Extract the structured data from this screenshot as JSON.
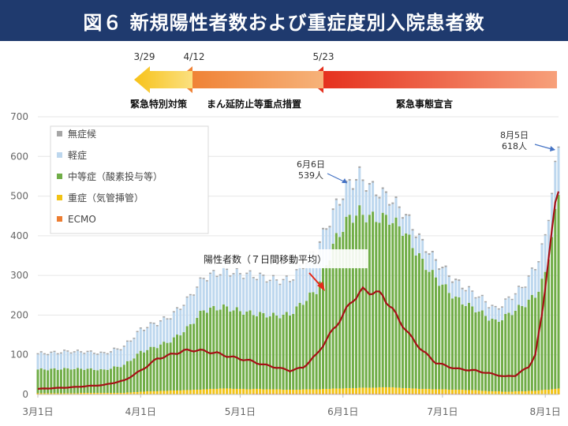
{
  "title": "図６ 新規陽性者数および重症度別入院患者数",
  "phases": [
    {
      "date": "3/29",
      "label": "緊急特別対策",
      "color": "#f7c21a"
    },
    {
      "date": "4/12",
      "label": "まん延防止等重点措置",
      "color": "#ef7d2e"
    },
    {
      "date": "5/23",
      "label": "緊急事態宣言",
      "color": "#e42a19"
    }
  ],
  "annotations": [
    {
      "date": "6月6日",
      "value": "539人"
    },
    {
      "date": "8月5日",
      "value": "618人"
    }
  ],
  "line_callout": "陽性者数（７日間移動平均）",
  "colors": {
    "none": "#a6a6a6",
    "mild": "#bdd7ee",
    "moderate": "#70ad47",
    "severe": "#f2c315",
    "ecmo": "#ed7d31",
    "line": "#a50f15"
  },
  "chart_data": {
    "type": "bar",
    "stacked": true,
    "ylim": [
      0,
      700
    ],
    "yticks": [
      0,
      100,
      200,
      300,
      400,
      500,
      600,
      700
    ],
    "xlim": [
      0,
      157
    ],
    "xticks": [
      {
        "label": "3月1日",
        "day": 0
      },
      {
        "label": "4月1日",
        "day": 31
      },
      {
        "label": "5月1日",
        "day": 61
      },
      {
        "label": "6月1日",
        "day": 92
      },
      {
        "label": "7月1日",
        "day": 122
      },
      {
        "label": "8月1日",
        "day": 153
      }
    ],
    "legend": [
      "無症候",
      "軽症",
      "中等症（酸素投与等）",
      "重症（気管挿管）",
      "ECMO"
    ],
    "legend_position": "top-left",
    "series_keyframes": {
      "moderate": [
        [
          0,
          60
        ],
        [
          10,
          62
        ],
        [
          20,
          58
        ],
        [
          26,
          70
        ],
        [
          31,
          100
        ],
        [
          40,
          125
        ],
        [
          45,
          155
        ],
        [
          50,
          200
        ],
        [
          56,
          205
        ],
        [
          65,
          190
        ],
        [
          72,
          185
        ],
        [
          76,
          190
        ],
        [
          84,
          250
        ],
        [
          90,
          380
        ],
        [
          94,
          430
        ],
        [
          97,
          442
        ],
        [
          100,
          430
        ],
        [
          106,
          425
        ],
        [
          110,
          400
        ],
        [
          116,
          320
        ],
        [
          120,
          280
        ],
        [
          126,
          230
        ],
        [
          134,
          195
        ],
        [
          138,
          175
        ],
        [
          141,
          190
        ],
        [
          146,
          215
        ],
        [
          150,
          240
        ],
        [
          153,
          290
        ],
        [
          155,
          390
        ],
        [
          157,
          485
        ]
      ],
      "mild": [
        [
          0,
          38
        ],
        [
          10,
          42
        ],
        [
          20,
          40
        ],
        [
          26,
          45
        ],
        [
          31,
          55
        ],
        [
          40,
          60
        ],
        [
          45,
          70
        ],
        [
          50,
          80
        ],
        [
          56,
          90
        ],
        [
          65,
          95
        ],
        [
          72,
          88
        ],
        [
          76,
          85
        ],
        [
          84,
          100
        ],
        [
          90,
          80
        ],
        [
          94,
          85
        ],
        [
          97,
          90
        ],
        [
          100,
          75
        ],
        [
          106,
          50
        ],
        [
          110,
          45
        ],
        [
          116,
          45
        ],
        [
          120,
          42
        ],
        [
          126,
          40
        ],
        [
          134,
          35
        ],
        [
          138,
          30
        ],
        [
          141,
          35
        ],
        [
          146,
          45
        ],
        [
          150,
          70
        ],
        [
          153,
          90
        ],
        [
          155,
          110
        ],
        [
          157,
          118
        ]
      ],
      "severe": [
        [
          0,
          2
        ],
        [
          26,
          3
        ],
        [
          31,
          6
        ],
        [
          45,
          10
        ],
        [
          56,
          14
        ],
        [
          65,
          12
        ],
        [
          76,
          10
        ],
        [
          84,
          11
        ],
        [
          94,
          14
        ],
        [
          106,
          16
        ],
        [
          116,
          12
        ],
        [
          126,
          10
        ],
        [
          134,
          8
        ],
        [
          141,
          6
        ],
        [
          150,
          8
        ],
        [
          157,
          14
        ]
      ],
      "none": [
        [
          0,
          3
        ],
        [
          60,
          3
        ],
        [
          100,
          4
        ],
        [
          157,
          3
        ]
      ],
      "ecmo": [
        [
          0,
          1
        ],
        [
          50,
          1
        ],
        [
          80,
          2
        ],
        [
          110,
          2
        ],
        [
          157,
          1
        ]
      ],
      "positive_7day_avg": [
        [
          0,
          14
        ],
        [
          10,
          18
        ],
        [
          20,
          24
        ],
        [
          26,
          35
        ],
        [
          31,
          60
        ],
        [
          36,
          90
        ],
        [
          40,
          100
        ],
        [
          44,
          110
        ],
        [
          48,
          112
        ],
        [
          54,
          104
        ],
        [
          58,
          95
        ],
        [
          64,
          85
        ],
        [
          68,
          75
        ],
        [
          72,
          68
        ],
        [
          76,
          60
        ],
        [
          80,
          68
        ],
        [
          84,
          100
        ],
        [
          88,
          150
        ],
        [
          92,
          200
        ],
        [
          95,
          240
        ],
        [
          98,
          262
        ],
        [
          101,
          258
        ],
        [
          104,
          250
        ],
        [
          108,
          200
        ],
        [
          112,
          150
        ],
        [
          116,
          110
        ],
        [
          120,
          80
        ],
        [
          126,
          65
        ],
        [
          132,
          60
        ],
        [
          138,
          50
        ],
        [
          141,
          45
        ],
        [
          144,
          48
        ],
        [
          148,
          70
        ],
        [
          150,
          100
        ],
        [
          152,
          200
        ],
        [
          154,
          350
        ],
        [
          156,
          470
        ],
        [
          157,
          510
        ]
      ]
    }
  }
}
